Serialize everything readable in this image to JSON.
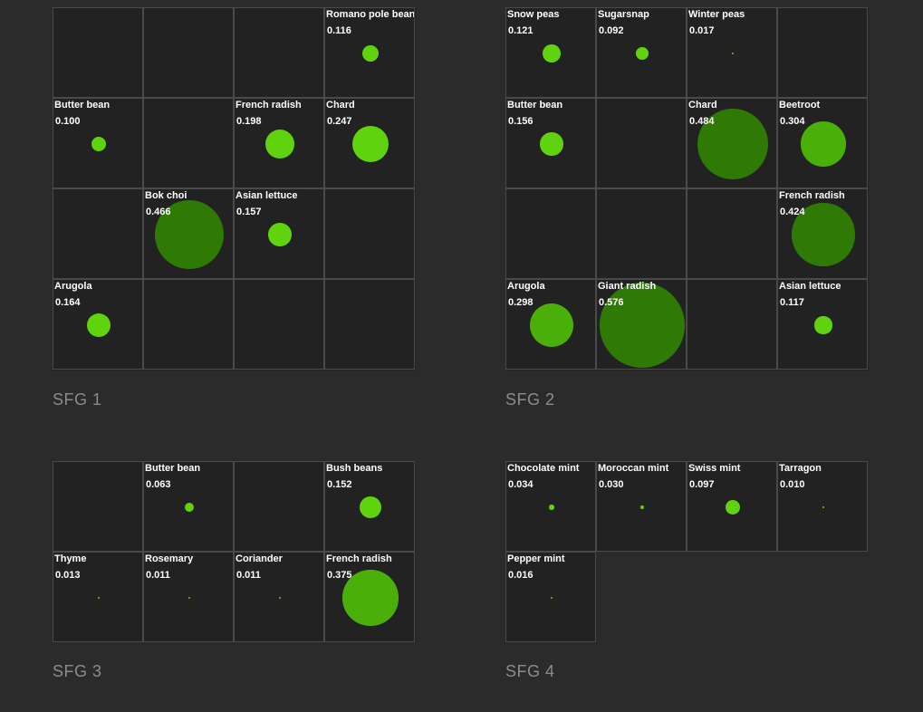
{
  "chart_data": [
    {
      "type": "bubble-grid",
      "title": "SFG 1",
      "rows": 4,
      "cols": 4,
      "cells": [
        {
          "row": 0,
          "col": 3,
          "name": "Romano pole bean",
          "value": 0.116
        },
        {
          "row": 1,
          "col": 0,
          "name": "Butter bean",
          "value": 0.1
        },
        {
          "row": 1,
          "col": 2,
          "name": "French radish",
          "value": 0.198
        },
        {
          "row": 1,
          "col": 3,
          "name": "Chard",
          "value": 0.247
        },
        {
          "row": 2,
          "col": 1,
          "name": "Bok choi",
          "value": 0.466
        },
        {
          "row": 2,
          "col": 2,
          "name": "Asian lettuce",
          "value": 0.157
        },
        {
          "row": 3,
          "col": 0,
          "name": "Arugola",
          "value": 0.164
        }
      ]
    },
    {
      "type": "bubble-grid",
      "title": "SFG 2",
      "rows": 4,
      "cols": 4,
      "cells": [
        {
          "row": 0,
          "col": 0,
          "name": "Snow peas",
          "value": 0.121
        },
        {
          "row": 0,
          "col": 1,
          "name": "Sugarsnap",
          "value": 0.092
        },
        {
          "row": 0,
          "col": 2,
          "name": "Winter peas",
          "value": 0.017
        },
        {
          "row": 1,
          "col": 0,
          "name": "Butter bean",
          "value": 0.156
        },
        {
          "row": 1,
          "col": 2,
          "name": "Chard",
          "value": 0.484
        },
        {
          "row": 1,
          "col": 3,
          "name": "Beetroot",
          "value": 0.304
        },
        {
          "row": 2,
          "col": 3,
          "name": "French radish",
          "value": 0.424
        },
        {
          "row": 3,
          "col": 0,
          "name": "Arugola",
          "value": 0.298
        },
        {
          "row": 3,
          "col": 1,
          "name": "Giant radish",
          "value": 0.576
        },
        {
          "row": 3,
          "col": 3,
          "name": "Asian lettuce",
          "value": 0.117
        }
      ]
    },
    {
      "type": "bubble-grid",
      "title": "SFG 3",
      "rows": 2,
      "cols": 4,
      "cells": [
        {
          "row": 0,
          "col": 1,
          "name": "Butter bean",
          "value": 0.063
        },
        {
          "row": 0,
          "col": 3,
          "name": "Bush beans",
          "value": 0.152
        },
        {
          "row": 1,
          "col": 0,
          "name": "Thyme",
          "value": 0.013
        },
        {
          "row": 1,
          "col": 1,
          "name": "Rosemary",
          "value": 0.011
        },
        {
          "row": 1,
          "col": 2,
          "name": "Coriander",
          "value": 0.011
        },
        {
          "row": 1,
          "col": 3,
          "name": "French radish",
          "value": 0.375
        }
      ]
    },
    {
      "type": "bubble-grid",
      "title": "SFG 4",
      "rows": 2,
      "cols": 4,
      "sparse": true,
      "cells": [
        {
          "row": 0,
          "col": 0,
          "name": "Chocolate mint",
          "value": 0.034
        },
        {
          "row": 0,
          "col": 1,
          "name": "Moroccan mint",
          "value": 0.03
        },
        {
          "row": 0,
          "col": 2,
          "name": "Swiss mint",
          "value": 0.097
        },
        {
          "row": 0,
          "col": 3,
          "name": "Tarragon",
          "value": 0.01
        },
        {
          "row": 1,
          "col": 0,
          "name": "Pepper mint",
          "value": 0.016
        }
      ]
    }
  ],
  "colors": {
    "bubble_small": "#5fd40e",
    "bubble_mid": "#4ab009",
    "bubble_large": "#2f7a05"
  }
}
